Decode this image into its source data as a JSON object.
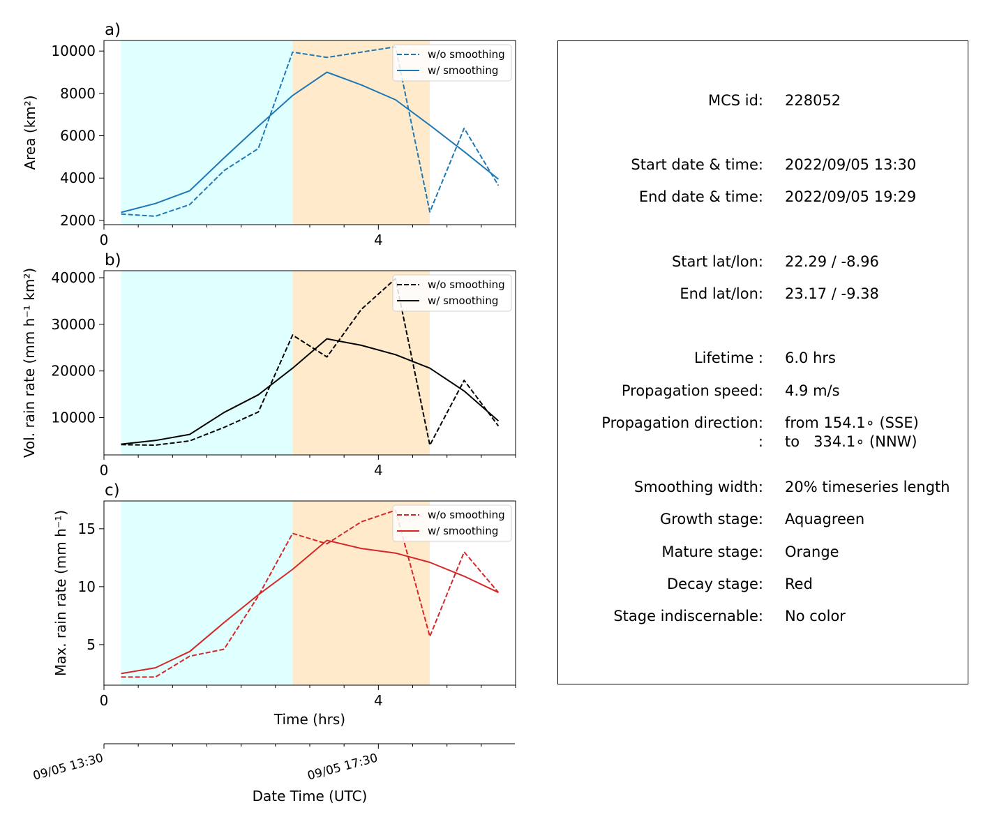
{
  "stage_colors": {
    "growth": "#e0ffff",
    "mature": "#ffebcc"
  },
  "chart_data": [
    {
      "panel_label": "a)",
      "type": "line",
      "ylabel": "Area  (km²)",
      "xlim": [
        0,
        6
      ],
      "ylim": [
        1800,
        10500
      ],
      "xticks": [
        0,
        4
      ],
      "yticks": [
        2000,
        4000,
        6000,
        8000,
        10000
      ],
      "stage_spans": [
        {
          "stage": "growth",
          "x0": 0.25,
          "x1": 2.75
        },
        {
          "stage": "mature",
          "x0": 2.75,
          "x1": 4.75
        }
      ],
      "x": [
        0.25,
        0.75,
        1.25,
        1.75,
        2.25,
        2.75,
        3.25,
        3.75,
        4.25,
        4.75,
        5.25,
        5.75
      ],
      "series": [
        {
          "name": "w/o smoothing",
          "color": "#1f77b4",
          "dashed": true,
          "values": [
            2300,
            2200,
            2750,
            4350,
            5400,
            9950,
            9700,
            9950,
            10200,
            2400,
            6350,
            3650
          ]
        },
        {
          "name": "w/ smoothing",
          "color": "#1f77b4",
          "dashed": false,
          "values": [
            2380,
            2800,
            3400,
            4950,
            6450,
            7900,
            9000,
            8400,
            7700,
            6500,
            5250,
            3950
          ]
        }
      ]
    },
    {
      "panel_label": "b)",
      "type": "line",
      "ylabel": "Vol. rain rate (mm h⁻¹ km²)",
      "xlim": [
        0,
        6
      ],
      "ylim": [
        2000,
        41500
      ],
      "xticks": [
        0,
        4
      ],
      "yticks": [
        10000,
        20000,
        30000,
        40000
      ],
      "stage_spans": [
        {
          "stage": "growth",
          "x0": 0.25,
          "x1": 2.75
        },
        {
          "stage": "mature",
          "x0": 2.75,
          "x1": 4.75
        }
      ],
      "x": [
        0.25,
        0.75,
        1.25,
        1.75,
        2.25,
        2.75,
        3.25,
        3.75,
        4.25,
        4.75,
        5.25,
        5.75
      ],
      "series": [
        {
          "name": "w/o smoothing",
          "color": "#000000",
          "dashed": true,
          "values": [
            4200,
            4100,
            5000,
            7900,
            11200,
            27700,
            23000,
            33200,
            39800,
            4100,
            18000,
            8200
          ]
        },
        {
          "name": "w/ smoothing",
          "color": "#000000",
          "dashed": false,
          "values": [
            4300,
            5100,
            6400,
            11100,
            14900,
            20600,
            26900,
            25500,
            23500,
            20600,
            15700,
            9300
          ]
        }
      ]
    },
    {
      "panel_label": "c)",
      "type": "line",
      "ylabel": "Max. rain rate  (mm h⁻¹)",
      "xlim": [
        0,
        6
      ],
      "ylim": [
        1.5,
        17.4
      ],
      "xticks": [
        0,
        4
      ],
      "yticks": [
        5,
        10,
        15
      ],
      "xlabel": "Time (hrs)",
      "stage_spans": [
        {
          "stage": "growth",
          "x0": 0.25,
          "x1": 2.75
        },
        {
          "stage": "mature",
          "x0": 2.75,
          "x1": 4.75
        }
      ],
      "x": [
        0.25,
        0.75,
        1.25,
        1.75,
        2.25,
        2.75,
        3.25,
        3.75,
        4.25,
        4.75,
        5.25,
        5.75
      ],
      "series": [
        {
          "name": "w/o smoothing",
          "color": "#d62728",
          "dashed": true,
          "values": [
            2.2,
            2.2,
            4.0,
            4.6,
            9.2,
            14.6,
            13.7,
            15.6,
            16.6,
            5.7,
            13.0,
            9.5
          ]
        },
        {
          "name": "w/ smoothing",
          "color": "#d62728",
          "dashed": false,
          "values": [
            2.5,
            3.0,
            4.4,
            6.9,
            9.3,
            11.5,
            14.0,
            13.3,
            12.9,
            12.1,
            10.9,
            9.5
          ]
        }
      ]
    }
  ],
  "date_axis": {
    "label": "Date Time (UTC)",
    "ticks": [
      {
        "x": 0,
        "label": "09/05 13:30"
      },
      {
        "x": 4,
        "label": "09/05 17:30"
      }
    ]
  },
  "info": {
    "rows": [
      {
        "label": "MCS id:",
        "value": "228052"
      },
      {
        "label": "Start date & time:",
        "value": "2022/09/05 13:30"
      },
      {
        "label": "End date & time:",
        "value": "2022/09/05 19:29"
      },
      {
        "label": "Start lat/lon:",
        "value": "22.29 / -8.96"
      },
      {
        "label": "End lat/lon:",
        "value": "23.17 / -9.38"
      },
      {
        "label": "Lifetime :",
        "value": "6.0 hrs"
      },
      {
        "label": "Propagation speed:",
        "value": "4.9 m/s"
      },
      {
        "label": "Propagation direction:",
        "value": "from 154.1∘ (SSE)"
      },
      {
        "label": ":",
        "value": "to   334.1∘ (NNW)"
      },
      {
        "label": "Smoothing width:",
        "value": "20% timeseries length"
      },
      {
        "label": "Growth stage:",
        "value": "Aquagreen"
      },
      {
        "label": "Mature stage:",
        "value": "Orange"
      },
      {
        "label": "Decay stage:",
        "value": "Red"
      },
      {
        "label": "Stage indiscernable:",
        "value": "No color"
      }
    ]
  }
}
